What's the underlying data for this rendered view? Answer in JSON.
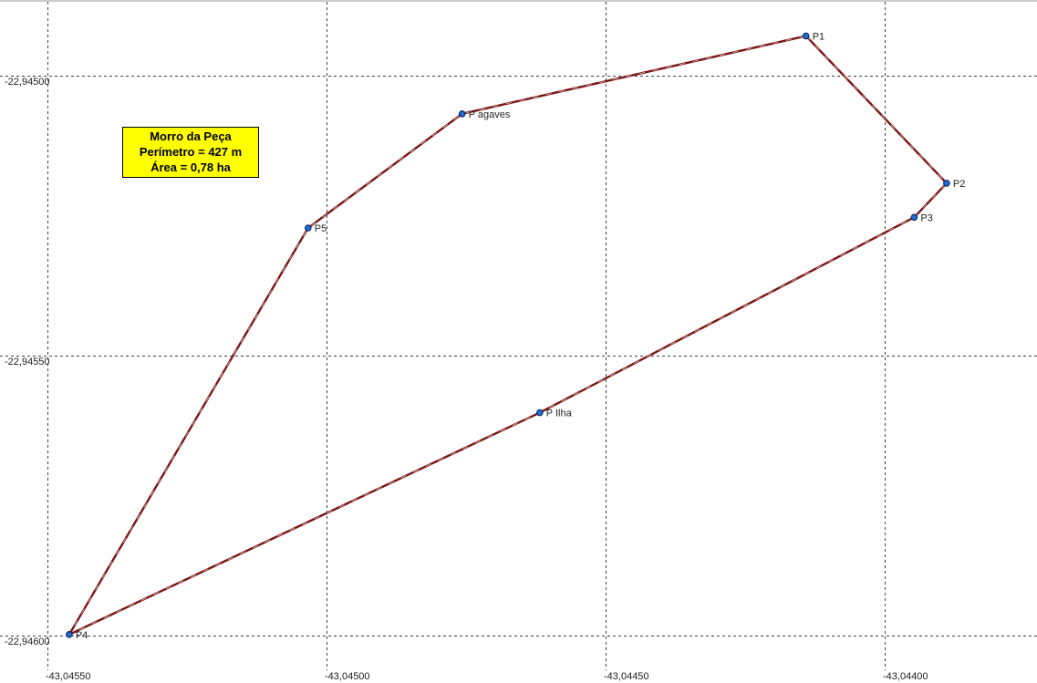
{
  "map": {
    "longitude_ticks": [
      {
        "value": -43.0455,
        "label": "-43,04550"
      },
      {
        "value": -43.045,
        "label": "-43,04500"
      },
      {
        "value": -43.0445,
        "label": "-43,04450"
      },
      {
        "value": -43.044,
        "label": "-43,04400"
      }
    ],
    "latitude_ticks": [
      {
        "value": -22.945,
        "label": "-22,94500"
      },
      {
        "value": -22.9455,
        "label": "-22,94550"
      },
      {
        "value": -22.946,
        "label": "-22,94600"
      }
    ],
    "polygon_order": [
      "P1",
      "P2",
      "P3",
      "P Ilha",
      "P4",
      "P5",
      "P agaves"
    ],
    "points": [
      {
        "id": "P1",
        "label": "P1",
        "lon": -43.044141,
        "lat": -22.944929
      },
      {
        "id": "P2",
        "label": "P2",
        "lon": -43.043889,
        "lat": -22.945192
      },
      {
        "id": "P3",
        "label": "P3",
        "lon": -43.043947,
        "lat": -22.945253
      },
      {
        "id": "P Ilha",
        "label": "P Ilha",
        "lon": -43.044618,
        "lat": -22.945602
      },
      {
        "id": "P4",
        "label": "P4",
        "lon": -43.045461,
        "lat": -22.945998
      },
      {
        "id": "P5",
        "label": "P5",
        "lon": -43.045033,
        "lat": -22.945272
      },
      {
        "id": "P agaves",
        "label": "P agaves",
        "lon": -43.044757,
        "lat": -22.945068
      }
    ],
    "info_box": {
      "title": "Morro da Peça",
      "perimeter": "Perímetro = 427 m",
      "area": "Área = 0,78 ha"
    },
    "colors": {
      "polygon_line": "#7a1515",
      "polygon_dash": "#e8c8c8",
      "point_fill": "#1e6fd9",
      "point_stroke": "#0a2a66",
      "grid": "#000000",
      "info_box_bg": "#ffff00"
    }
  }
}
